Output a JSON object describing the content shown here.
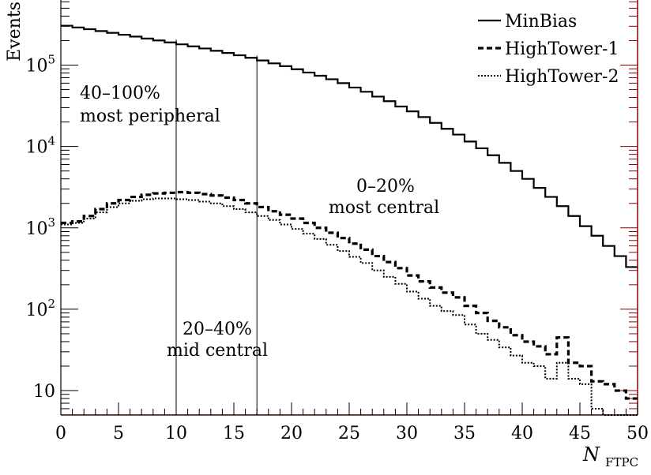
{
  "chart_data": {
    "type": "line",
    "step": true,
    "title": "",
    "xlabel": "N",
    "xlabel_subscript": "FTPC",
    "ylabel": "Events",
    "xlim": [
      0,
      50
    ],
    "ylim_log10": [
      0.7,
      5.8
    ],
    "y_scale": "log",
    "grid": false,
    "legend_position": "top-right",
    "x_ticks": [
      0,
      5,
      10,
      15,
      20,
      25,
      30,
      35,
      40,
      45,
      50
    ],
    "x_tick_labels": [
      "0",
      "5",
      "10",
      "15",
      "20",
      "25",
      "30",
      "35",
      "40",
      "45",
      "50"
    ],
    "y_ticks": [
      {
        "value": 10,
        "label_base": "10",
        "label_exp": ""
      },
      {
        "value": 100,
        "label_base": "10",
        "label_exp": "2"
      },
      {
        "value": 1000,
        "label_base": "10",
        "label_exp": "3"
      },
      {
        "value": 10000,
        "label_base": "10",
        "label_exp": "4"
      },
      {
        "value": 100000,
        "label_base": "10",
        "label_exp": "5"
      }
    ],
    "x_bin_edges": [
      0,
      1,
      2,
      3,
      4,
      5,
      6,
      7,
      8,
      9,
      10,
      11,
      12,
      13,
      14,
      15,
      16,
      17,
      18,
      19,
      20,
      21,
      22,
      23,
      24,
      25,
      26,
      27,
      28,
      29,
      30,
      31,
      32,
      33,
      34,
      35,
      36,
      37,
      38,
      39,
      40,
      41,
      42,
      43,
      44,
      45,
      46,
      47,
      48,
      49,
      50
    ],
    "series": [
      {
        "name": "MinBias",
        "style": "solid",
        "values": [
          305000,
          290000,
          276000,
          262000,
          249000,
          236000,
          224000,
          212000,
          201000,
          190000,
          180000,
          170000,
          160000,
          150000,
          141000,
          132000,
          123000,
          114000,
          105000,
          97000,
          89000,
          81000,
          74000,
          67000,
          60000,
          53000,
          47000,
          41000,
          36000,
          31000,
          27000,
          23000,
          19500,
          16500,
          14000,
          11500,
          9500,
          7800,
          6300,
          5000,
          4000,
          3100,
          2400,
          1850,
          1400,
          1050,
          800,
          600,
          450,
          330
        ]
      },
      {
        "name": "HighTower-1",
        "style": "dashed",
        "values": [
          1150,
          1200,
          1400,
          1700,
          2000,
          2200,
          2400,
          2550,
          2650,
          2700,
          2750,
          2700,
          2600,
          2500,
          2350,
          2200,
          2000,
          1800,
          1600,
          1450,
          1300,
          1150,
          1000,
          870,
          750,
          640,
          540,
          450,
          380,
          320,
          260,
          220,
          185,
          160,
          140,
          110,
          90,
          72,
          60,
          48,
          40,
          35,
          28,
          45,
          22,
          20,
          13,
          12,
          10,
          8
        ]
      },
      {
        "name": "HighTower-2",
        "style": "dotted",
        "values": [
          1100,
          1150,
          1300,
          1550,
          1800,
          2000,
          2150,
          2250,
          2300,
          2300,
          2250,
          2200,
          2100,
          2000,
          1850,
          1700,
          1550,
          1400,
          1250,
          1100,
          970,
          850,
          730,
          620,
          520,
          440,
          370,
          300,
          250,
          205,
          165,
          135,
          110,
          95,
          85,
          65,
          50,
          42,
          34,
          27,
          22,
          20,
          14,
          22,
          14,
          12,
          6,
          4,
          5,
          4
        ]
      }
    ],
    "vertical_lines": [
      10,
      17
    ],
    "annotations": [
      {
        "id": "peripheral",
        "lines": [
          "40–100%",
          "most peripheral"
        ]
      },
      {
        "id": "mid",
        "lines": [
          "20–40%",
          "mid central"
        ]
      },
      {
        "id": "central",
        "lines": [
          "0–20%",
          "most central"
        ]
      }
    ],
    "colors": {
      "frame": "#000000",
      "line": "#000000",
      "right_axis": "#8b0000"
    }
  }
}
